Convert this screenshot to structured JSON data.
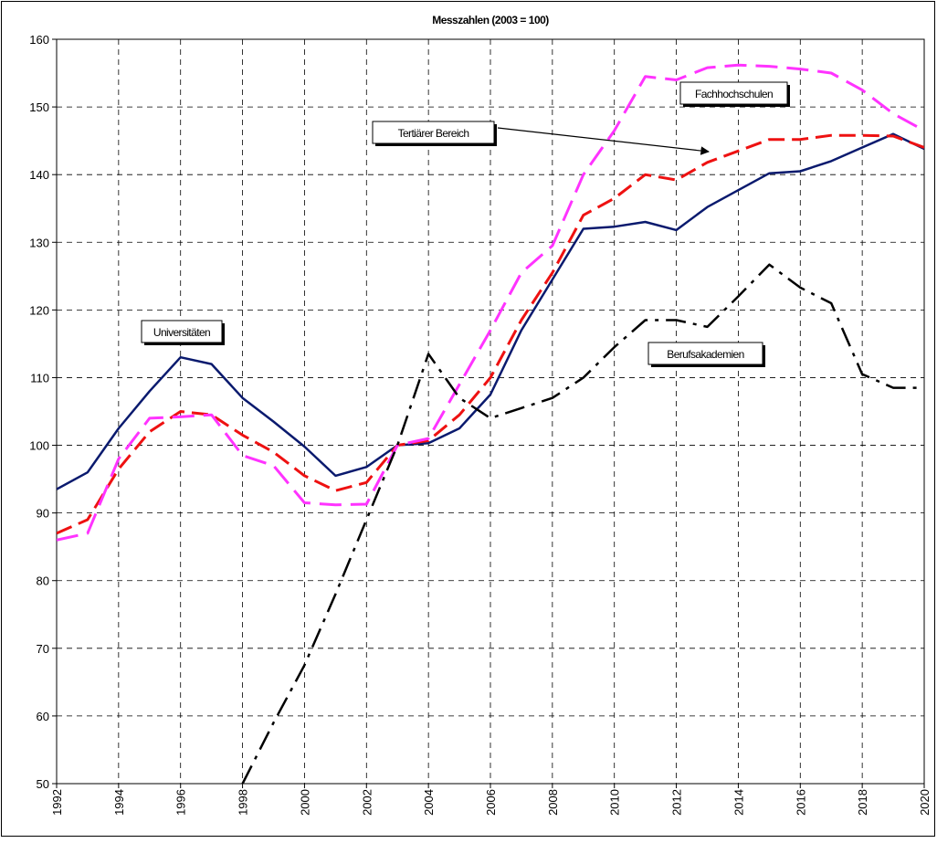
{
  "chart_data": {
    "type": "line",
    "title": "Messzahlen (2003 = 100)",
    "x": [
      1992,
      1993,
      1994,
      1995,
      1996,
      1997,
      1998,
      1999,
      2000,
      2001,
      2002,
      2003,
      2004,
      2005,
      2006,
      2007,
      2008,
      2009,
      2010,
      2011,
      2012,
      2013,
      2014,
      2015,
      2016,
      2017,
      2018,
      2019,
      2020
    ],
    "xlim": [
      1992,
      2020
    ],
    "xticks": [
      1992,
      1994,
      1996,
      1998,
      2000,
      2002,
      2004,
      2006,
      2008,
      2010,
      2012,
      2014,
      2016,
      2018,
      2020
    ],
    "ylim": [
      50,
      160
    ],
    "yticks": [
      50,
      60,
      70,
      80,
      90,
      100,
      110,
      120,
      130,
      140,
      150,
      160
    ],
    "grid": true,
    "series": [
      {
        "name": "Universitäten",
        "color": "#0a1a6e",
        "values": [
          93.5,
          96,
          102.5,
          108,
          113,
          112,
          107,
          103.5,
          99.8,
          95.5,
          96.8,
          100,
          100.3,
          102.5,
          107.5,
          117,
          124.5,
          132,
          132.3,
          133,
          131.8,
          135.2,
          137.7,
          140.2,
          140.5,
          142,
          144,
          146,
          143.8
        ]
      },
      {
        "name": "Tertiärer Bereich",
        "color": "#ee1111",
        "values": [
          87,
          89,
          96.5,
          102,
          105,
          104.5,
          101.5,
          99,
          95.5,
          93.3,
          94.5,
          100,
          100.7,
          104.5,
          110,
          118.5,
          125.5,
          134,
          136.5,
          140,
          139.2,
          141.8,
          143.5,
          145.2,
          145.2,
          145.8,
          145.8,
          145.7,
          144
        ]
      },
      {
        "name": "Fachhochschulen",
        "color": "#ff33ff",
        "values": [
          86,
          87,
          98,
          104,
          104.2,
          104.5,
          98.5,
          97,
          91.5,
          91.2,
          91.3,
          100,
          101,
          109,
          117,
          125.5,
          129.5,
          140,
          146.5,
          154.5,
          154,
          155.8,
          156.2,
          156,
          155.6,
          155,
          152.5,
          149,
          146.5
        ]
      },
      {
        "name": "Berufsakademien",
        "color": "#000000",
        "values": [
          null,
          null,
          null,
          null,
          null,
          null,
          50,
          59,
          67.5,
          78,
          89,
          100,
          113.5,
          107,
          104,
          105.5,
          107,
          110,
          114.5,
          118.5,
          118.5,
          117.5,
          122,
          126.7,
          123.3,
          121,
          110.5,
          108.5,
          108.5
        ]
      }
    ]
  }
}
